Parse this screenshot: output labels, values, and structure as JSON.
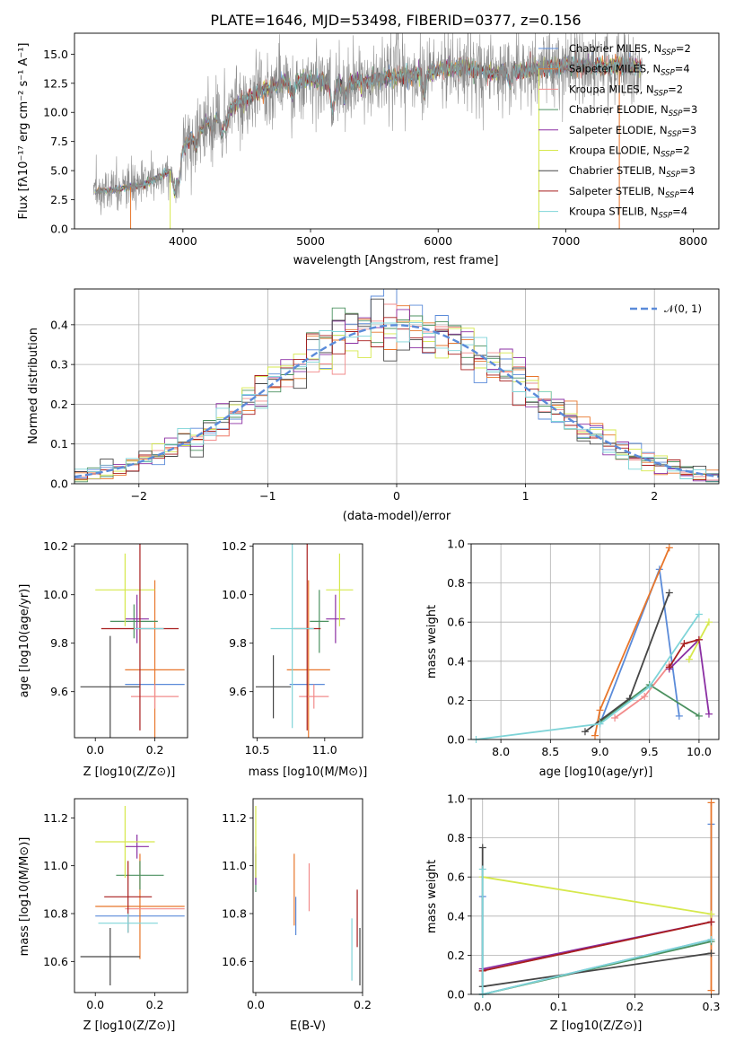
{
  "series_colors": [
    "#5b8bd9",
    "#e8762b",
    "#f28b8b",
    "#4c9160",
    "#8b2fa3",
    "#d6e84c",
    "#464646",
    "#a81e1e",
    "#7fd4d8"
  ],
  "chart_data": [
    {
      "id": "spectrum",
      "type": "line",
      "title": "PLATE=1646, MJD=53498, FIBERID=0377, z=0.156",
      "xlabel": "wavelength [Angstrom, rest frame]",
      "ylabel": "Flux [f",
      "ylabel_full": "Flux [fλ10⁻¹⁷ erg cm⁻² s⁻¹ A⁻¹]",
      "xlim": [
        3150,
        8200
      ],
      "ylim": [
        0,
        16.8
      ],
      "xticks": [
        "4000",
        "5000",
        "6000",
        "7000",
        "8000"
      ],
      "yticks": [
        "0.0",
        "2.5",
        "5.0",
        "7.5",
        "10.0",
        "12.5",
        "15.0"
      ],
      "continuum": {
        "x": [
          3300,
          3500,
          3700,
          3900,
          4000,
          4200,
          4400,
          4600,
          4800,
          5000,
          5200,
          5400,
          5600,
          5800,
          6000,
          6200,
          6400,
          6600,
          6800,
          7000,
          7200,
          7400,
          7600
        ],
        "y": [
          3.2,
          3.4,
          3.8,
          5.0,
          7.0,
          9.2,
          10.5,
          11.8,
          12.6,
          12.8,
          12.5,
          12.6,
          13.0,
          13.2,
          13.6,
          13.9,
          13.4,
          13.5,
          13.8,
          14.0,
          13.9,
          14.0,
          14.0
        ]
      },
      "legend_location": "upper right",
      "legend": [
        {
          "name": "Chabrier MILES, N",
          "nssp": "=2",
          "color": "#5b8bd9"
        },
        {
          "name": "Salpeter MILES, N",
          "nssp": "=4",
          "color": "#e8762b"
        },
        {
          "name": "Kroupa MILES, N",
          "nssp": "=2",
          "color": "#f28b8b"
        },
        {
          "name": "Chabrier ELODIE, N",
          "nssp": "=3",
          "color": "#4c9160"
        },
        {
          "name": "Salpeter ELODIE, N",
          "nssp": "=3",
          "color": "#8b2fa3"
        },
        {
          "name": "Kroupa ELODIE, N",
          "nssp": "=2",
          "color": "#d6e84c"
        },
        {
          "name": "Chabrier STELIB, N",
          "nssp": "=3",
          "color": "#464646"
        },
        {
          "name": "Salpeter STELIB, N",
          "nssp": "=4",
          "color": "#a81e1e"
        },
        {
          "name": "Kroupa STELIB, N",
          "nssp": "=4",
          "color": "#7fd4d8"
        }
      ],
      "subscript": "SSP"
    },
    {
      "id": "residuals",
      "type": "histogram",
      "xlabel": "(data-model)/error",
      "ylabel": "Normed distribution",
      "xlim": [
        -2.5,
        2.5
      ],
      "ylim": [
        0,
        0.49
      ],
      "xticks": [
        "−2",
        "−1",
        "0",
        "1",
        "2"
      ],
      "yticks": [
        "0.0",
        "0.1",
        "0.2",
        "0.3",
        "0.4"
      ],
      "grid": true,
      "legend": "𝒩(0, 1)",
      "gaussian": {
        "mu": 0,
        "sigma": 1,
        "color": "#5b8bd9"
      }
    },
    {
      "id": "age-vs-z",
      "type": "errorbar",
      "xlabel": "Z [log",
      "xlabel_full": "Z [log10(Z/Z⊙)]",
      "ylabel_full": "age  [log10(age/yr)]",
      "xlim": [
        -0.07,
        0.31
      ],
      "ylim": [
        9.41,
        10.21
      ],
      "xticks": [
        "0.0",
        "0.2"
      ],
      "yticks": [
        "9.6",
        "9.8",
        "10.0",
        "10.2"
      ],
      "points": [
        {
          "x": 0.2,
          "xerr": 0.1,
          "y": 9.63,
          "yerr": 0.0,
          "color": "#5b8bd9"
        },
        {
          "x": 0.2,
          "xerr": 0.1,
          "y": 9.69,
          "yerr": 0.37,
          "color": "#e8762b"
        },
        {
          "x": 0.2,
          "xerr": 0.08,
          "y": 9.58,
          "yerr": 0.05,
          "color": "#f28b8b"
        },
        {
          "x": 0.13,
          "xerr": 0.08,
          "y": 9.89,
          "yerr": 0.07,
          "color": "#4c9160"
        },
        {
          "x": 0.14,
          "xerr": 0.04,
          "y": 9.9,
          "yerr": 0.1,
          "color": "#8b2fa3"
        },
        {
          "x": 0.1,
          "xerr": 0.1,
          "y": 10.02,
          "yerr": 0.15,
          "color": "#d6e84c"
        },
        {
          "x": 0.05,
          "xerr": 0.1,
          "y": 9.62,
          "yerr": 0.21,
          "color": "#464646"
        },
        {
          "x": 0.15,
          "xerr": 0.13,
          "y": 9.86,
          "yerr": 0.42,
          "color": "#a81e1e"
        },
        {
          "x": 0.18,
          "xerr": 0.05,
          "y": 9.86,
          "yerr": 0.0,
          "color": "#7fd4d8"
        }
      ]
    },
    {
      "id": "age-vs-mass",
      "type": "errorbar",
      "xlabel_full": "mass [log10(M/M⊙)]",
      "xlim": [
        10.47,
        11.28
      ],
      "ylim": [
        9.41,
        10.21
      ],
      "xticks": [
        "10.5",
        "11.0"
      ],
      "yticks": [
        "9.6",
        "9.8",
        "10.0",
        "10.2"
      ],
      "points": [
        {
          "x": 10.87,
          "xerr": 0.13,
          "y": 9.63,
          "yerr": 0.0,
          "color": "#5b8bd9"
        },
        {
          "x": 10.88,
          "xerr": 0.16,
          "y": 9.69,
          "yerr": 0.37,
          "color": "#e8762b"
        },
        {
          "x": 10.92,
          "xerr": 0.11,
          "y": 9.58,
          "yerr": 0.05,
          "color": "#f28b8b"
        },
        {
          "x": 10.96,
          "xerr": 0.07,
          "y": 9.89,
          "yerr": 0.13,
          "color": "#4c9160"
        },
        {
          "x": 11.08,
          "xerr": 0.07,
          "y": 9.9,
          "yerr": 0.1,
          "color": "#8b2fa3"
        },
        {
          "x": 11.11,
          "xerr": 0.1,
          "y": 10.02,
          "yerr": 0.15,
          "color": "#d6e84c"
        },
        {
          "x": 10.62,
          "xerr": 0.13,
          "y": 9.62,
          "yerr": 0.13,
          "color": "#464646"
        },
        {
          "x": 10.87,
          "xerr": 0.1,
          "y": 9.86,
          "yerr": 0.42,
          "color": "#a81e1e"
        },
        {
          "x": 10.76,
          "xerr": 0.16,
          "y": 9.86,
          "yerr": 0.41,
          "color": "#7fd4d8"
        }
      ]
    },
    {
      "id": "mass-weight-vs-age",
      "type": "line",
      "xlabel_full": "age  [log10(age/yr)]",
      "ylabel": "mass weight",
      "xlim": [
        7.7,
        10.2
      ],
      "ylim": [
        0,
        1.0
      ],
      "xticks": [
        "8.0",
        "8.5",
        "9.0",
        "9.5",
        "10.0"
      ],
      "yticks": [
        "0.0",
        "0.2",
        "0.4",
        "0.6",
        "0.8",
        "1.0"
      ],
      "grid": true,
      "series": [
        {
          "color": "#5b8bd9",
          "x": [
            9.0,
            9.6,
            9.8
          ],
          "y": [
            0.08,
            0.87,
            0.12
          ]
        },
        {
          "color": "#e8762b",
          "x": [
            8.95,
            9.0,
            9.7
          ],
          "y": [
            0.02,
            0.15,
            0.98
          ]
        },
        {
          "color": "#f28b8b",
          "x": [
            9.15,
            9.45,
            9.7
          ],
          "y": [
            0.11,
            0.22,
            0.38
          ]
        },
        {
          "color": "#4c9160",
          "x": [
            9.0,
            9.5,
            10.0
          ],
          "y": [
            0.09,
            0.28,
            0.12
          ]
        },
        {
          "color": "#8b2fa3",
          "x": [
            9.7,
            10.0,
            10.1
          ],
          "y": [
            0.36,
            0.51,
            0.13
          ]
        },
        {
          "color": "#d6e84c",
          "x": [
            9.9,
            10.1
          ],
          "y": [
            0.41,
            0.6
          ]
        },
        {
          "color": "#464646",
          "x": [
            8.85,
            9.3,
            9.7
          ],
          "y": [
            0.04,
            0.21,
            0.75
          ]
        },
        {
          "color": "#a81e1e",
          "x": [
            9.7,
            9.85,
            10.0
          ],
          "y": [
            0.37,
            0.49,
            0.51
          ]
        },
        {
          "color": "#7fd4d8",
          "x": [
            7.75,
            9.0,
            9.5,
            10.0
          ],
          "y": [
            0.0,
            0.08,
            0.27,
            0.64
          ]
        }
      ]
    },
    {
      "id": "mass-vs-z",
      "type": "errorbar",
      "xlabel_full": "Z [log10(Z/Z⊙)]",
      "ylabel_full": "mass [log10(M/M⊙)]",
      "xlim": [
        -0.07,
        0.31
      ],
      "ylim": [
        10.47,
        11.28
      ],
      "xticks": [
        "0.0",
        "0.2"
      ],
      "yticks": [
        "10.6",
        "10.8",
        "11.0",
        "11.2"
      ],
      "points": [
        {
          "x": 0.15,
          "xerr": 0.15,
          "y": 10.79,
          "yerr": 0.0,
          "color": "#5b8bd9"
        },
        {
          "x": 0.15,
          "xerr": 0.15,
          "y": 10.83,
          "yerr": 0.22,
          "color": "#e8762b"
        },
        {
          "x": 0.2,
          "xerr": 0.1,
          "y": 10.82,
          "yerr": 0.0,
          "color": "#f28b8b"
        },
        {
          "x": 0.15,
          "xerr": 0.08,
          "y": 10.96,
          "yerr": 0.06,
          "color": "#4c9160"
        },
        {
          "x": 0.14,
          "xerr": 0.04,
          "y": 11.08,
          "yerr": 0.05,
          "color": "#8b2fa3"
        },
        {
          "x": 0.1,
          "xerr": 0.1,
          "y": 11.1,
          "yerr": 0.15,
          "color": "#d6e84c"
        },
        {
          "x": 0.05,
          "xerr": 0.1,
          "y": 10.62,
          "yerr": 0.12,
          "color": "#464646"
        },
        {
          "x": 0.11,
          "xerr": 0.08,
          "y": 10.87,
          "yerr": 0.15,
          "color": "#a81e1e"
        },
        {
          "x": 0.11,
          "xerr": 0.1,
          "y": 10.76,
          "yerr": 0.04,
          "color": "#7fd4d8"
        }
      ]
    },
    {
      "id": "mass-vs-ebv",
      "type": "errorbar",
      "xlabel": "E(B-V)",
      "xlim": [
        -0.005,
        0.2
      ],
      "ylim": [
        10.47,
        11.28
      ],
      "xticks": [
        "0.0",
        "0.2"
      ],
      "yticks": [
        "10.6",
        "10.8",
        "11.0",
        "11.2"
      ],
      "points": [
        {
          "x": 0.075,
          "xerr": 0.0,
          "y": 10.79,
          "yerr": 0.08,
          "color": "#5b8bd9"
        },
        {
          "x": 0.072,
          "xerr": 0.0,
          "y": 10.9,
          "yerr": 0.15,
          "color": "#e8762b"
        },
        {
          "x": 0.1,
          "xerr": 0.0,
          "y": 10.91,
          "yerr": 0.1,
          "color": "#f28b8b"
        },
        {
          "x": 0.0,
          "xerr": 0.0,
          "y": 10.97,
          "yerr": 0.08,
          "color": "#4c9160"
        },
        {
          "x": 0.0,
          "xerr": 0.0,
          "y": 11.0,
          "yerr": 0.08,
          "color": "#8b2fa3"
        },
        {
          "x": 0.0,
          "xerr": 0.0,
          "y": 11.1,
          "yerr": 0.15,
          "color": "#d6e84c"
        },
        {
          "x": 0.195,
          "xerr": 0.0,
          "y": 10.62,
          "yerr": 0.12,
          "color": "#464646"
        },
        {
          "x": 0.19,
          "xerr": 0.0,
          "y": 10.78,
          "yerr": 0.12,
          "color": "#a81e1e"
        },
        {
          "x": 0.18,
          "xerr": 0.0,
          "y": 10.65,
          "yerr": 0.13,
          "color": "#7fd4d8"
        }
      ]
    },
    {
      "id": "mass-weight-vs-z",
      "type": "line",
      "xlabel_full": "Z [log10(Z/Z⊙)]",
      "ylabel": "mass weight",
      "xlim": [
        -0.015,
        0.31
      ],
      "ylim": [
        0,
        1.0
      ],
      "xticks": [
        "0.0",
        "0.1",
        "0.2",
        "0.3"
      ],
      "yticks": [
        "0.0",
        "0.2",
        "0.4",
        "0.6",
        "0.8",
        "1.0"
      ],
      "grid": true,
      "series": [
        {
          "color": "#5b8bd9",
          "x": [
            0.0,
            0.0,
            0.3,
            0.3
          ],
          "y": [
            0.5,
            0.0,
            0.28,
            0.87
          ]
        },
        {
          "color": "#e8762b",
          "x": [
            0.3,
            0.3
          ],
          "y": [
            0.02,
            0.98
          ]
        },
        {
          "color": "#f28b8b",
          "x": [
            0.0,
            0.3
          ],
          "y": [
            0.12,
            0.37
          ]
        },
        {
          "color": "#4c9160",
          "x": [
            0.0,
            0.3
          ],
          "y": [
            0.0,
            0.27
          ]
        },
        {
          "color": "#8b2fa3",
          "x": [
            0.0,
            0.3
          ],
          "y": [
            0.13,
            0.37
          ]
        },
        {
          "color": "#d6e84c",
          "x": [
            0.0,
            0.3
          ],
          "y": [
            0.6,
            0.41
          ]
        },
        {
          "color": "#464646",
          "x": [
            0.0,
            0.0,
            0.3
          ],
          "y": [
            0.75,
            0.04,
            0.21
          ]
        },
        {
          "color": "#a81e1e",
          "x": [
            0.0,
            0.3
          ],
          "y": [
            0.12,
            0.37
          ]
        },
        {
          "color": "#7fd4d8",
          "x": [
            0.0,
            0.0,
            0.3
          ],
          "y": [
            0.64,
            0.0,
            0.28
          ]
        }
      ]
    }
  ]
}
